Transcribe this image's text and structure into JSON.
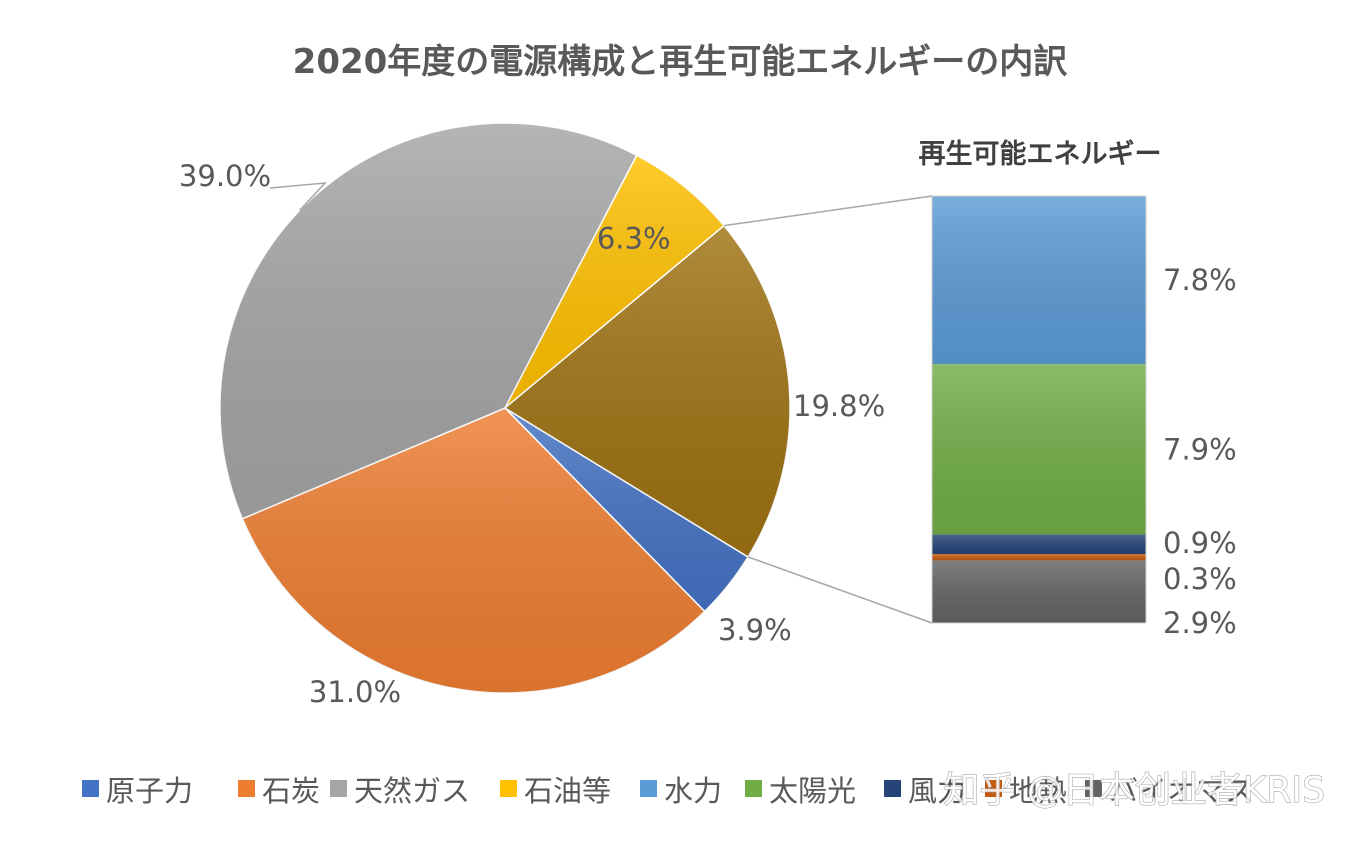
{
  "chart_data": [
    {
      "type": "pie",
      "title": "2020年度の電源構成と再生可能エネルギーの内訳",
      "categories": [
        "原子力",
        "石炭",
        "天然ガス",
        "石油等",
        "再生可能エネルギー"
      ],
      "values": [
        3.9,
        31.0,
        39.0,
        6.3,
        19.8
      ],
      "value_labels": [
        "3.9%",
        "31.0%",
        "39.0%",
        "6.3%",
        "19.8%"
      ],
      "colors": [
        "#4472c4",
        "#ed7d31",
        "#a5a5a5",
        "#ffc000",
        "#9e7212"
      ],
      "legend_position": "bottom"
    },
    {
      "type": "bar",
      "stacked": true,
      "title": "再生可能エネルギー",
      "categories": [
        "水力",
        "太陽光",
        "風力",
        "地熱",
        "バイオマス"
      ],
      "values": [
        7.8,
        7.9,
        0.9,
        0.3,
        2.9
      ],
      "value_labels": [
        "7.8%",
        "7.9%",
        "0.9%",
        "0.3%",
        "2.9%"
      ],
      "colors": [
        "#5b9bd5",
        "#70ad47",
        "#264478",
        "#c55a11",
        "#636363"
      ]
    }
  ],
  "legend": [
    {
      "label": "原子力",
      "color": "#4472c4"
    },
    {
      "label": "石炭",
      "color": "#ed7d31"
    },
    {
      "label": "天然ガス",
      "color": "#a5a5a5"
    },
    {
      "label": "石油等",
      "color": "#ffc000"
    },
    {
      "label": "水力",
      "color": "#5b9bd5"
    },
    {
      "label": "太陽光",
      "color": "#70ad47"
    },
    {
      "label": "風力",
      "color": "#264478"
    },
    {
      "label": "地熱",
      "color": "#c55a11"
    },
    {
      "label": "バイオマス",
      "color": "#636363"
    }
  ],
  "watermark": "知乎 @日本创业者KRIS"
}
